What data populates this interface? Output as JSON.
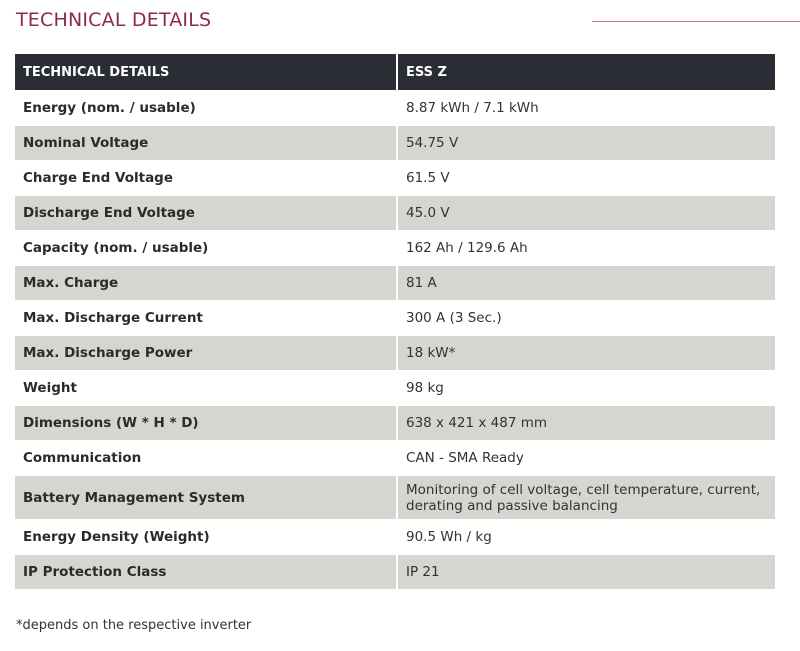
{
  "title": "TECHNICAL DETAILS",
  "table": {
    "headers": [
      "TECHNICAL DETAILS",
      "ESS Z"
    ],
    "rows": [
      {
        "label": "Energy (nom. / usable)",
        "value": "8.87 kWh / 7.1 kWh"
      },
      {
        "label": "Nominal Voltage",
        "value": "54.75 V"
      },
      {
        "label": "Charge End Voltage",
        "value": "61.5 V"
      },
      {
        "label": "Discharge End Voltage",
        "value": "45.0 V"
      },
      {
        "label": "Capacity (nom. / usable)",
        "value": "162 Ah / 129.6 Ah"
      },
      {
        "label": "Max. Charge",
        "value": "81 A"
      },
      {
        "label": "Max. Discharge Current",
        "value": "300 A (3 Sec.)"
      },
      {
        "label": "Max. Discharge Power",
        "value": "18 kW*"
      },
      {
        "label": "Weight",
        "value": "98 kg"
      },
      {
        "label": "Dimensions (W * H * D)",
        "value": "638 x 421 x 487 mm"
      },
      {
        "label": "Communication",
        "value": "CAN - SMA Ready"
      },
      {
        "label": "Battery Management System",
        "value": "Monitoring of cell voltage, cell temperature, current, derating and passive balancing"
      },
      {
        "label": "Energy Density (Weight)",
        "value": "90.5 Wh / kg"
      },
      {
        "label": "IP Protection Class",
        "value": "IP 21"
      }
    ]
  },
  "footnote": "*depends on the respective inverter",
  "colors": {
    "title": "#8b2a4e",
    "header_bg": "#2a2d33",
    "shaded_row": "#d6d5d0"
  }
}
